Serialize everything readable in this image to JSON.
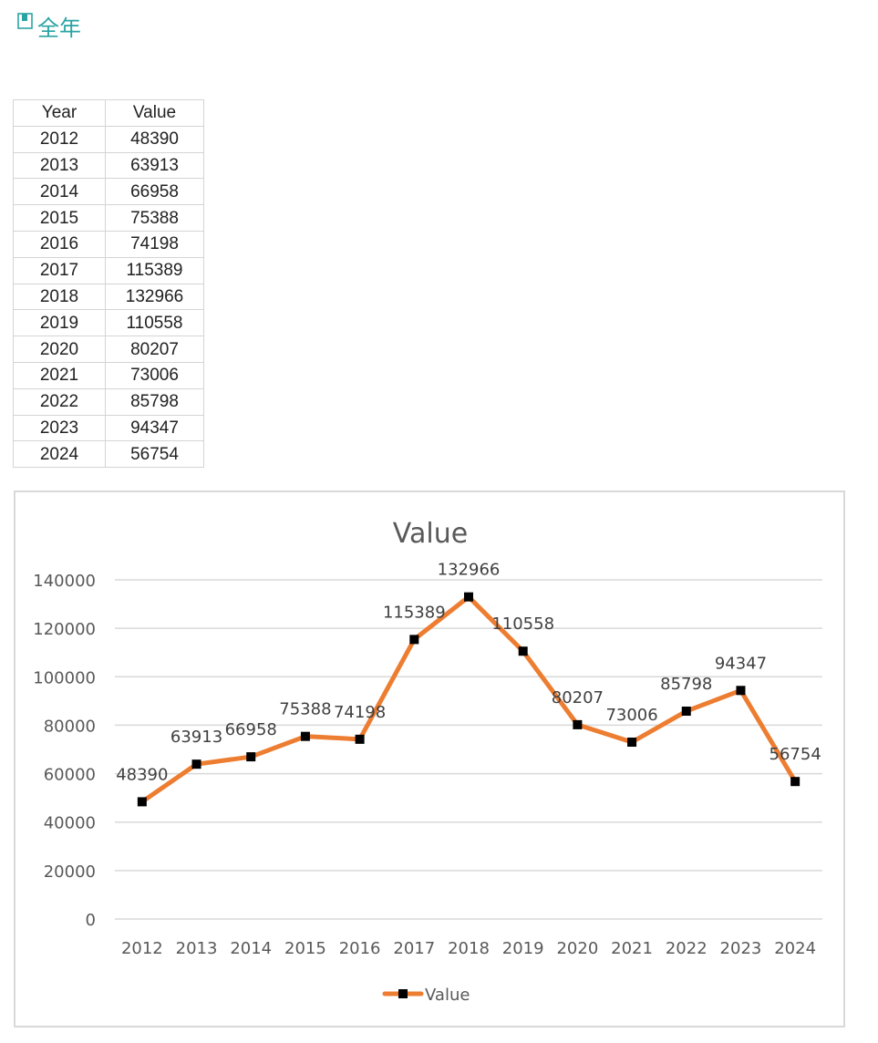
{
  "heading": {
    "icon": "book-icon",
    "text": "全年"
  },
  "table": {
    "headers": [
      "Year",
      "Value"
    ],
    "rows": [
      [
        "2012",
        "48390"
      ],
      [
        "2013",
        "63913"
      ],
      [
        "2014",
        "66958"
      ],
      [
        "2015",
        "75388"
      ],
      [
        "2016",
        "74198"
      ],
      [
        "2017",
        "115389"
      ],
      [
        "2018",
        "132966"
      ],
      [
        "2019",
        "110558"
      ],
      [
        "2020",
        "80207"
      ],
      [
        "2021",
        "73006"
      ],
      [
        "2022",
        "85798"
      ],
      [
        "2023",
        "94347"
      ],
      [
        "2024",
        "56754"
      ]
    ]
  },
  "chart_data": {
    "type": "line",
    "title": "Value",
    "xlabel": "",
    "ylabel": "",
    "categories": [
      "2012",
      "2013",
      "2014",
      "2015",
      "2016",
      "2017",
      "2018",
      "2019",
      "2020",
      "2021",
      "2022",
      "2023",
      "2024"
    ],
    "series": [
      {
        "name": "Value",
        "values": [
          48390,
          63913,
          66958,
          75388,
          74198,
          115389,
          132966,
          110558,
          80207,
          73006,
          85798,
          94347,
          56754
        ],
        "color": "#ed7d31",
        "marker": "square",
        "marker_color": "#000000"
      }
    ],
    "ylim": [
      0,
      140000
    ],
    "yticks": [
      0,
      20000,
      40000,
      60000,
      80000,
      100000,
      120000,
      140000
    ],
    "grid": true,
    "data_labels": true,
    "legend": "bottom"
  }
}
